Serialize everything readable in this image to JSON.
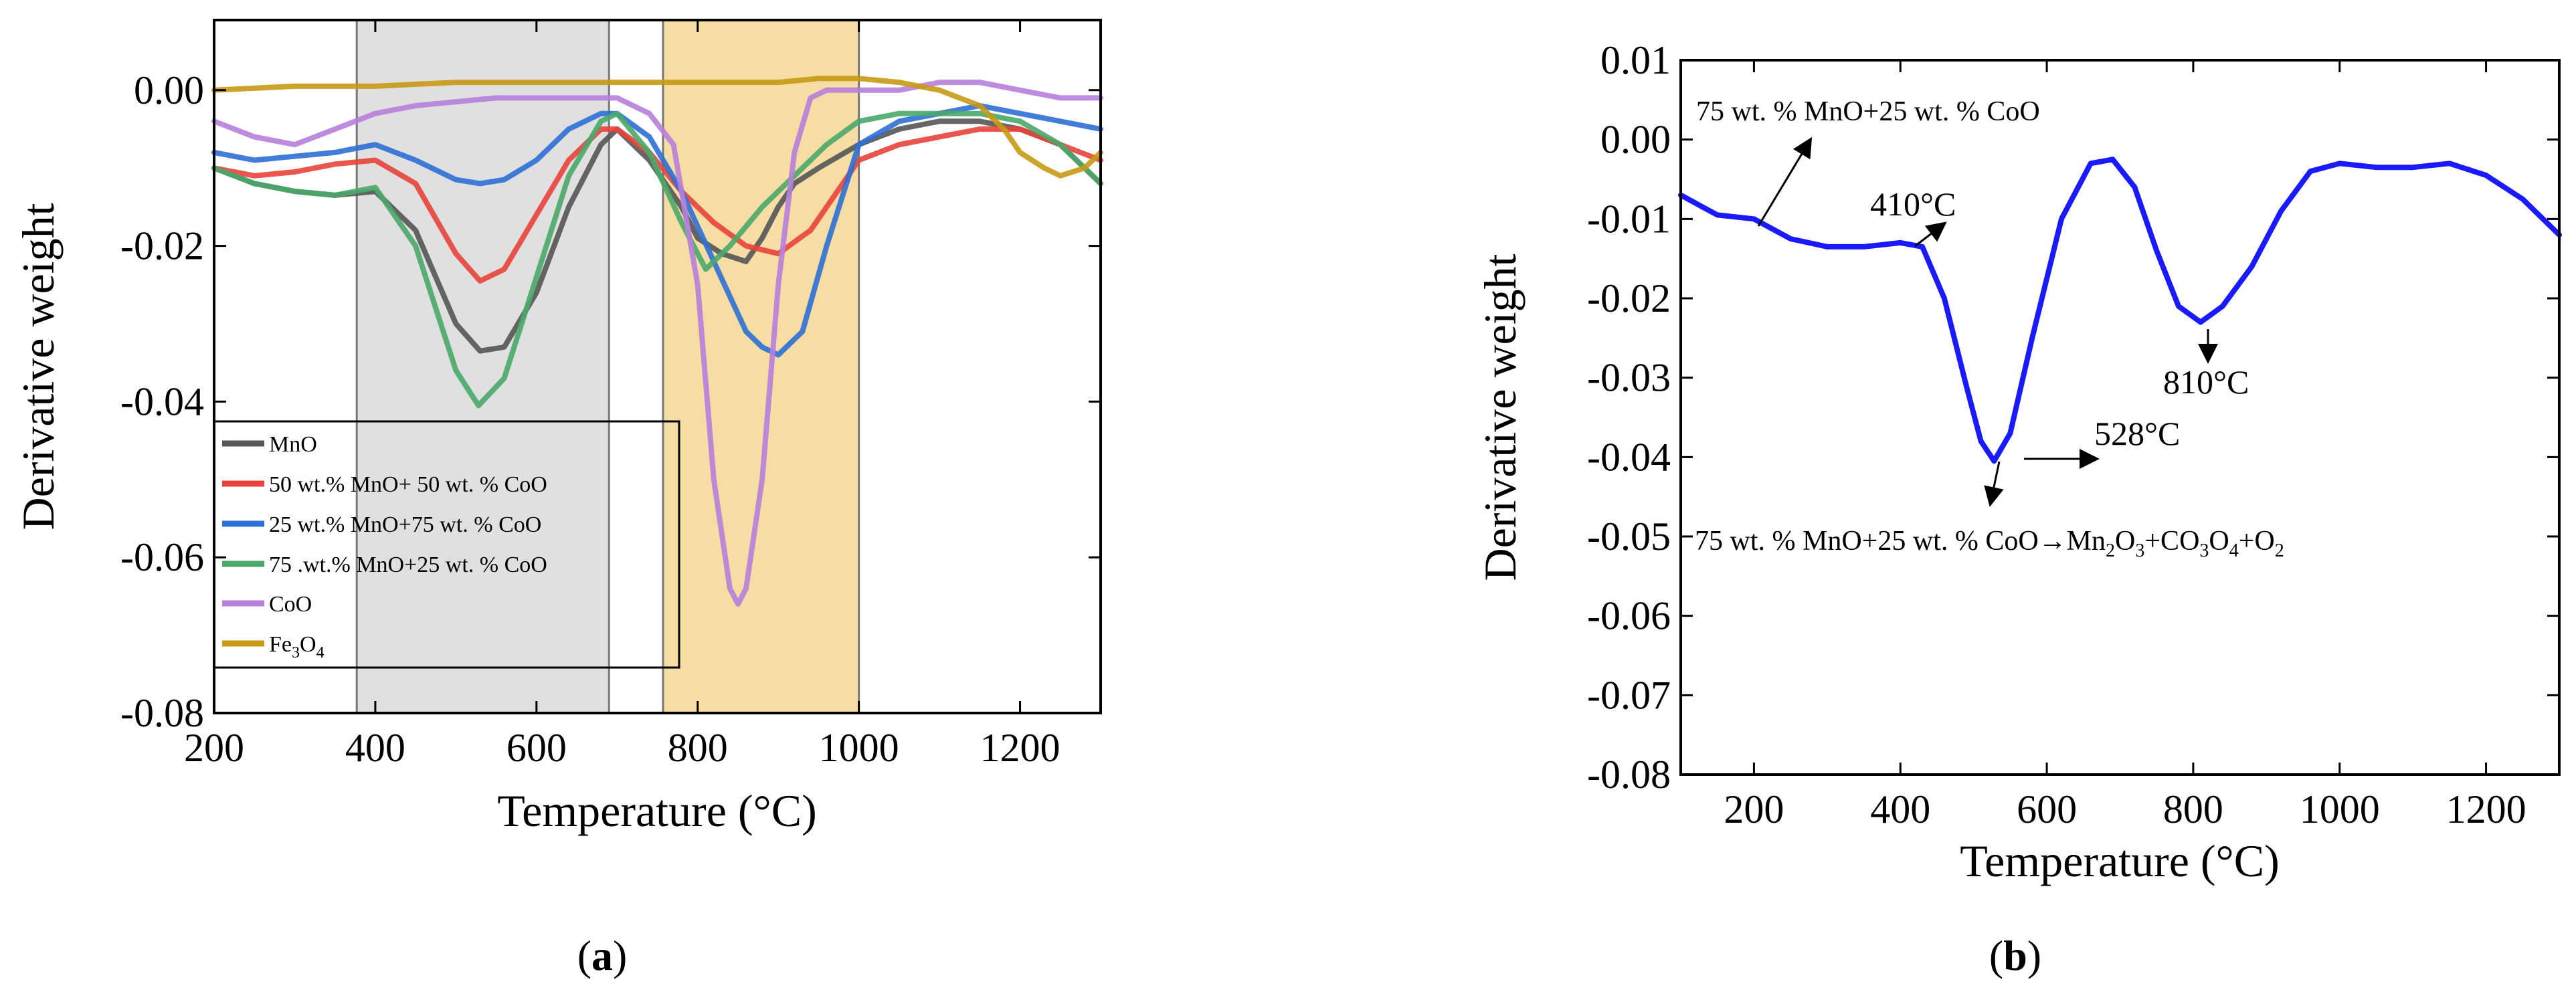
{
  "chart_data": [
    {
      "type": "line",
      "panel_label": "(a)",
      "panel_letter": "a",
      "xlabel": "Temperature (°C)",
      "ylabel": "Derivative weight",
      "xlim": [
        200,
        1300
      ],
      "ylim": [
        -0.08,
        0.009
      ],
      "xticks": [
        "200",
        "400",
        "600",
        "800",
        "1000",
        "1200"
      ],
      "yticks": [
        "0.00",
        "-0.02",
        "-0.04",
        "-0.06",
        "-0.08"
      ],
      "shaded_regions": [
        {
          "from": 377,
          "to": 690,
          "color": "#d3d3d3"
        },
        {
          "from": 757,
          "to": 1000,
          "color": "#f2cf7e"
        }
      ],
      "legend_location": "bottom-left",
      "series": [
        {
          "name": "MnO",
          "color": "#555555",
          "x": [
            200,
            250,
            300,
            350,
            400,
            450,
            500,
            530,
            560,
            600,
            640,
            680,
            700,
            740,
            780,
            800,
            830,
            860,
            880,
            900,
            920,
            950,
            1000,
            1050,
            1100,
            1150,
            1200,
            1250,
            1300
          ],
          "y": [
            -0.01,
            -0.012,
            -0.013,
            -0.0135,
            -0.013,
            -0.018,
            -0.03,
            -0.0335,
            -0.033,
            -0.026,
            -0.015,
            -0.007,
            -0.005,
            -0.009,
            -0.015,
            -0.019,
            -0.021,
            -0.022,
            -0.019,
            -0.015,
            -0.012,
            -0.01,
            -0.007,
            -0.005,
            -0.004,
            -0.004,
            -0.005,
            -0.007,
            -0.012
          ]
        },
        {
          "name": "50 wt.% MnO+ 50 wt. % CoO",
          "color": "#e8433a",
          "x": [
            200,
            250,
            300,
            350,
            400,
            450,
            500,
            530,
            560,
            600,
            640,
            680,
            700,
            740,
            780,
            820,
            860,
            900,
            940,
            1000,
            1050,
            1100,
            1150,
            1200,
            1250,
            1300
          ],
          "y": [
            -0.01,
            -0.011,
            -0.0105,
            -0.0095,
            -0.009,
            -0.012,
            -0.021,
            -0.0245,
            -0.023,
            -0.016,
            -0.009,
            -0.005,
            -0.005,
            -0.008,
            -0.013,
            -0.017,
            -0.02,
            -0.021,
            -0.018,
            -0.009,
            -0.007,
            -0.006,
            -0.005,
            -0.005,
            -0.007,
            -0.009
          ]
        },
        {
          "name": "25 wt.% MnO+75 wt. % CoO",
          "color": "#2d6fd6",
          "x": [
            200,
            250,
            300,
            350,
            400,
            450,
            500,
            530,
            560,
            600,
            640,
            680,
            700,
            740,
            780,
            820,
            860,
            880,
            900,
            930,
            960,
            1000,
            1050,
            1100,
            1150,
            1200,
            1250,
            1300
          ],
          "y": [
            -0.008,
            -0.009,
            -0.0085,
            -0.008,
            -0.007,
            -0.009,
            -0.0115,
            -0.012,
            -0.0115,
            -0.009,
            -0.005,
            -0.003,
            -0.003,
            -0.006,
            -0.013,
            -0.022,
            -0.031,
            -0.033,
            -0.034,
            -0.031,
            -0.02,
            -0.007,
            -0.004,
            -0.003,
            -0.002,
            -0.003,
            -0.004,
            -0.005
          ]
        },
        {
          "name": "75 .wt.% MnO+25 wt. % CoO",
          "color": "#4aa86a",
          "x": [
            200,
            250,
            300,
            350,
            400,
            450,
            500,
            528,
            560,
            600,
            640,
            680,
            700,
            740,
            780,
            810,
            840,
            880,
            920,
            960,
            1000,
            1050,
            1100,
            1150,
            1200,
            1250,
            1300
          ],
          "y": [
            -0.01,
            -0.012,
            -0.013,
            -0.0135,
            -0.0125,
            -0.02,
            -0.036,
            -0.0405,
            -0.037,
            -0.024,
            -0.011,
            -0.004,
            -0.003,
            -0.008,
            -0.017,
            -0.023,
            -0.02,
            -0.015,
            -0.011,
            -0.007,
            -0.004,
            -0.003,
            -0.003,
            -0.003,
            -0.004,
            -0.007,
            -0.012
          ]
        },
        {
          "name": "CoO",
          "color": "#b77fdb",
          "x": [
            200,
            250,
            300,
            350,
            400,
            450,
            500,
            550,
            600,
            650,
            700,
            740,
            770,
            800,
            820,
            840,
            850,
            860,
            880,
            900,
            920,
            940,
            960,
            1000,
            1050,
            1100,
            1150,
            1200,
            1250,
            1300
          ],
          "y": [
            -0.004,
            -0.006,
            -0.007,
            -0.005,
            -0.003,
            -0.002,
            -0.0015,
            -0.001,
            -0.001,
            -0.001,
            -0.001,
            -0.003,
            -0.007,
            -0.025,
            -0.05,
            -0.064,
            -0.066,
            -0.064,
            -0.05,
            -0.025,
            -0.008,
            -0.001,
            0.0,
            0.0,
            0.0,
            0.001,
            0.001,
            0.0,
            -0.001,
            -0.001
          ]
        },
        {
          "name": "Fe3O4",
          "color": "#c89a14",
          "x": [
            200,
            300,
            400,
            500,
            600,
            700,
            800,
            900,
            950,
            1000,
            1050,
            1100,
            1150,
            1180,
            1200,
            1230,
            1250,
            1280,
            1300
          ],
          "y": [
            0.0,
            0.0005,
            0.0005,
            0.001,
            0.001,
            0.001,
            0.001,
            0.001,
            0.0015,
            0.0015,
            0.001,
            0.0,
            -0.002,
            -0.005,
            -0.008,
            -0.01,
            -0.011,
            -0.01,
            -0.008
          ]
        }
      ]
    },
    {
      "type": "line",
      "panel_label": "(b)",
      "panel_letter": "b",
      "xlabel": "Temperature (°C)",
      "ylabel": "Derivative weight",
      "xlim": [
        100,
        1300
      ],
      "ylim": [
        -0.08,
        0.01
      ],
      "xticks": [
        "200",
        "400",
        "600",
        "800",
        "1000",
        "1200"
      ],
      "yticks": [
        "0.01",
        "0.00",
        "-0.01",
        "-0.02",
        "-0.03",
        "-0.04",
        "-0.05",
        "-0.06",
        "-0.07",
        "-0.08"
      ],
      "series": [
        {
          "name": "75 wt. % MnO+25 wt. % CoO",
          "color": "#1a1aff",
          "x": [
            100,
            150,
            200,
            250,
            300,
            350,
            400,
            430,
            460,
            490,
            510,
            528,
            550,
            580,
            620,
            660,
            690,
            720,
            750,
            780,
            810,
            840,
            880,
            920,
            960,
            1000,
            1050,
            1100,
            1150,
            1200,
            1250,
            1300
          ],
          "y": [
            -0.007,
            -0.0095,
            -0.01,
            -0.0125,
            -0.0135,
            -0.0135,
            -0.013,
            -0.0135,
            -0.02,
            -0.031,
            -0.038,
            -0.0405,
            -0.037,
            -0.025,
            -0.01,
            -0.003,
            -0.0025,
            -0.006,
            -0.014,
            -0.021,
            -0.023,
            -0.021,
            -0.016,
            -0.009,
            -0.004,
            -0.003,
            -0.0035,
            -0.0035,
            -0.003,
            -0.0045,
            -0.0075,
            -0.012
          ]
        }
      ],
      "annotations": {
        "sample_label": "75 wt. % MnO+25 wt. % CoO",
        "peak_410": "410°C",
        "peak_528": "528°C",
        "peak_810": "810°C",
        "reaction_prefix": "75 wt. % MnO+25 wt. % CoO→Mn",
        "reaction_sub1": "2",
        "reaction_mid1": "O",
        "reaction_sub2": "3",
        "reaction_mid2": "+CO",
        "reaction_sub3": "3",
        "reaction_mid3": "O",
        "reaction_sub4": "4",
        "reaction_mid4": "+O",
        "reaction_sub5": "2"
      }
    }
  ],
  "legend_labels": {
    "fe3o4_main": "Fe",
    "fe3o4_sub1": "3",
    "fe3o4_o": "O",
    "fe3o4_sub2": "4"
  }
}
